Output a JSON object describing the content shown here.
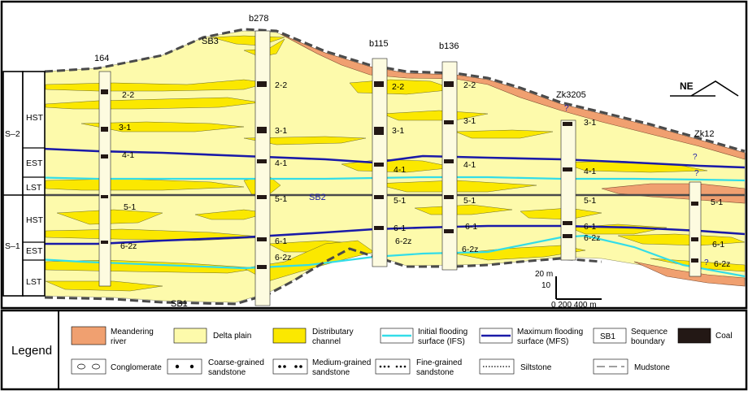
{
  "wells": [
    {
      "name": "164"
    },
    {
      "name": "b278"
    },
    {
      "name": "b115"
    },
    {
      "name": "b136"
    },
    {
      "name": "Zk3205"
    },
    {
      "name": "Zk12"
    }
  ],
  "north_arrow": {
    "label": "NE"
  },
  "sequences": [
    {
      "name": "S–2",
      "tracts": [
        "HST",
        "EST",
        "LST"
      ]
    },
    {
      "name": "S–1",
      "tracts": [
        "HST",
        "EST",
        "LST"
      ]
    }
  ],
  "boundaries": {
    "sb1": "SB1",
    "sb2": "SB2",
    "sb3": "SB3"
  },
  "coal_labels": {
    "c22": "2-2",
    "c31": "3-1",
    "c41": "4-1",
    "c51": "5-1",
    "c61": "6-1",
    "c62z": "6-2z",
    "unknown": "?"
  },
  "scale": {
    "vertical_top": "20 m",
    "vertical_mid": "10",
    "horizontal": "0  200 400 m"
  },
  "legend": {
    "title": "Legend",
    "items": {
      "meandering_river": "Meandering river",
      "delta_plain": "Delta plain",
      "distributary_channel": "Distributary channel",
      "ifs": "Initial flooding surface (IFS)",
      "mfs": "Maximum flooding surface (MFS)",
      "sb_symbol": "SB1",
      "sequence_boundary": "Sequence boundary",
      "coal": "Coal",
      "conglomerate": "Conglomerate",
      "coarse_sandstone": "Coarse-grained sandstone",
      "medium_sandstone": "Medium-grained sandstone",
      "fine_sandstone": "Fine-grained sandstone",
      "siltstone": "Siltstone",
      "mudstone": "Mudstone"
    }
  },
  "colors": {
    "meandering_river": "#f0a070",
    "delta_plain": "#fdfaab",
    "distributary_channel": "#fbe800",
    "ifs": "#33dde8",
    "mfs": "#1a1aa8",
    "coal": "#231815",
    "boundary": "#4a4a4a"
  }
}
